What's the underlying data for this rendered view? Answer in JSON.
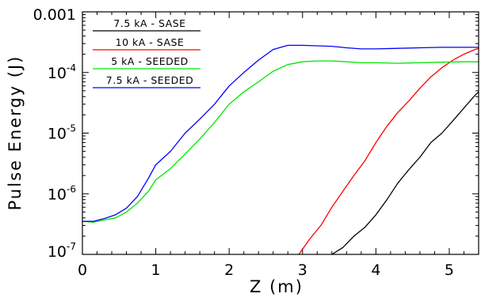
{
  "chart_data": {
    "type": "line",
    "xlabel": "Z (m)",
    "ylabel": "Pulse Energy (J)",
    "xlim": [
      0,
      5.4
    ],
    "ylim": [
      1e-07,
      0.001
    ],
    "y_scale": "log",
    "grid": false,
    "legend_position": "top-left",
    "x_ticks": [
      {
        "value": 0,
        "label": "0"
      },
      {
        "value": 1,
        "label": "1"
      },
      {
        "value": 2,
        "label": "2"
      },
      {
        "value": 3,
        "label": "3"
      },
      {
        "value": 4,
        "label": "4"
      },
      {
        "value": 5,
        "label": "5"
      }
    ],
    "y_ticks": [
      {
        "value": 1e-07,
        "base": "10",
        "exp": "-7"
      },
      {
        "value": 1e-06,
        "base": "10",
        "exp": "-6"
      },
      {
        "value": 1e-05,
        "base": "10",
        "exp": "-5"
      },
      {
        "value": 0.0001,
        "base": "10",
        "exp": "-4"
      },
      {
        "value": 0.001,
        "label": "0.001"
      }
    ],
    "series": [
      {
        "name": "7.5 kA - SASE",
        "color": "#000000",
        "x": [
          3.4,
          3.55,
          3.7,
          3.85,
          4.0,
          4.15,
          4.3,
          4.45,
          4.6,
          4.75,
          4.9,
          5.05,
          5.2,
          5.35,
          5.4
        ],
        "y": [
          1e-07,
          1.3e-07,
          2e-07,
          2.8e-07,
          4.5e-07,
          8e-07,
          1.5e-06,
          2.5e-06,
          4e-06,
          7e-06,
          1e-05,
          1.6e-05,
          2.6e-05,
          4.2e-05,
          4.8e-05
        ]
      },
      {
        "name": "10 kA - SASE",
        "color": "#ff0000",
        "x": [
          2.95,
          3.1,
          3.25,
          3.4,
          3.55,
          3.7,
          3.85,
          4.0,
          4.15,
          4.3,
          4.45,
          4.6,
          4.75,
          4.9,
          5.05,
          5.2,
          5.35,
          5.4
        ],
        "y": [
          1e-07,
          1.8e-07,
          3e-07,
          6e-07,
          1.1e-06,
          2e-06,
          3.5e-06,
          7e-06,
          1.3e-05,
          2.2e-05,
          3.4e-05,
          5.5e-05,
          8.5e-05,
          0.00012,
          0.00016,
          0.0002,
          0.00024,
          0.00025
        ]
      },
      {
        "name": "5 kA - SEEDED",
        "color": "#00e600",
        "x": [
          0,
          0.15,
          0.3,
          0.45,
          0.6,
          0.75,
          0.9,
          1.0,
          1.2,
          1.4,
          1.6,
          1.8,
          2.0,
          2.2,
          2.4,
          2.6,
          2.8,
          3.0,
          3.2,
          3.4,
          3.6,
          3.8,
          4.0,
          4.3,
          4.6,
          4.9,
          5.2,
          5.4
        ],
        "y": [
          3.5e-07,
          3.4e-07,
          3.7e-07,
          4e-07,
          5e-07,
          7e-07,
          1.1e-06,
          1.7e-06,
          2.6e-06,
          4.5e-06,
          8e-06,
          1.5e-05,
          3e-05,
          4.8e-05,
          7e-05,
          0.000105,
          0.000135,
          0.00015,
          0.000155,
          0.000155,
          0.00015,
          0.000145,
          0.000145,
          0.000142,
          0.000145,
          0.000148,
          0.00015,
          0.00015
        ]
      },
      {
        "name": "7.5 kA - SEEDED",
        "color": "#0000ff",
        "x": [
          0,
          0.15,
          0.3,
          0.45,
          0.6,
          0.75,
          0.9,
          1.0,
          1.2,
          1.4,
          1.6,
          1.8,
          2.0,
          2.2,
          2.4,
          2.6,
          2.8,
          3.0,
          3.2,
          3.4,
          3.6,
          3.8,
          4.0,
          4.3,
          4.6,
          4.9,
          5.2,
          5.4
        ],
        "y": [
          3.5e-07,
          3.5e-07,
          3.9e-07,
          4.5e-07,
          5.8e-07,
          9e-07,
          1.8e-06,
          3e-06,
          5e-06,
          1e-05,
          1.7e-05,
          3e-05,
          6e-05,
          0.0001,
          0.00016,
          0.00024,
          0.00028,
          0.00028,
          0.000275,
          0.00027,
          0.000255,
          0.000245,
          0.000245,
          0.00025,
          0.000255,
          0.00026,
          0.00026,
          0.00026
        ]
      }
    ]
  }
}
